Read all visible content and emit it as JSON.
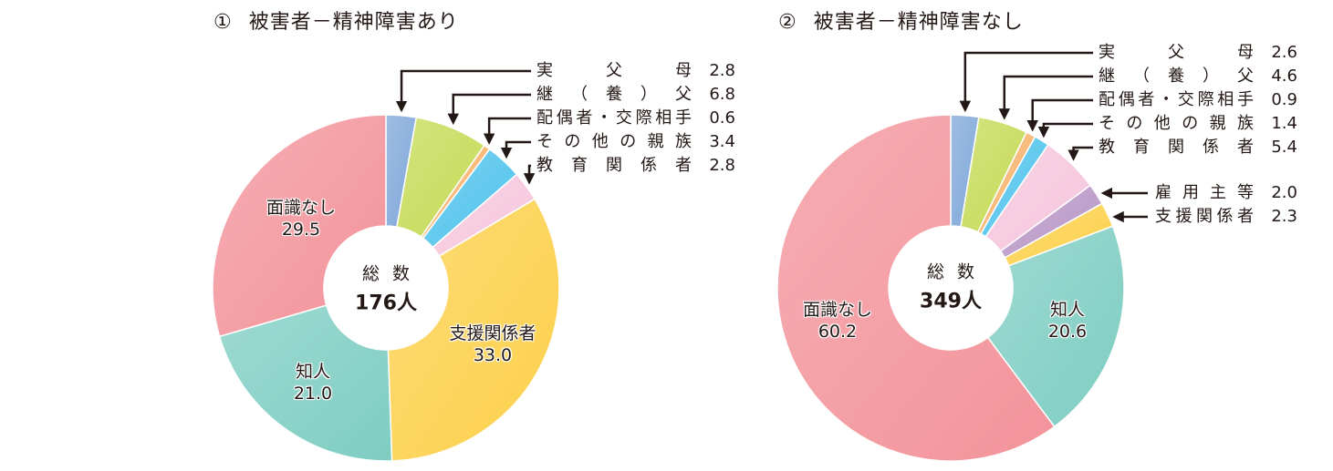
{
  "chart_data": [
    {
      "type": "pie",
      "variant": "donut",
      "title": "① 被害者－精神障害あり",
      "center_label": "総数",
      "total": "176人",
      "unit": "%",
      "categories": [
        "実父母",
        "継（養）父",
        "配偶者・交際相手",
        "その他の親族",
        "教育関係者",
        "支援関係者",
        "知人",
        "面識なし"
      ],
      "values": [
        2.8,
        6.8,
        0.6,
        3.4,
        2.8,
        33.0,
        21.0,
        29.5
      ],
      "colors": [
        "#7fa7d9",
        "#c5da55",
        "#f6b26b",
        "#4fc3ec",
        "#f6c6dc",
        "#fdd04a",
        "#7ecdc2",
        "#f3939a"
      ]
    },
    {
      "type": "pie",
      "variant": "donut",
      "title": "② 被害者－精神障害なし",
      "center_label": "総数",
      "total": "349人",
      "unit": "%",
      "categories": [
        "実父母",
        "継（養）父",
        "配偶者・交際相手",
        "その他の親族",
        "教育関係者",
        "雇用主等",
        "支援関係者",
        "知人",
        "面識なし"
      ],
      "values": [
        2.6,
        4.6,
        0.9,
        1.4,
        5.4,
        2.0,
        2.3,
        20.6,
        60.2
      ],
      "colors": [
        "#7fa7d9",
        "#c5da55",
        "#f6b26b",
        "#4fc3ec",
        "#f6c6dc",
        "#b896c6",
        "#fdd04a",
        "#7ecdc2",
        "#f3939a"
      ]
    }
  ],
  "charts": [
    {
      "num": "①",
      "title": "被害者－精神障害あり",
      "center_top": "総数",
      "center_total": "176人",
      "legend": [
        {
          "label": "実父母",
          "value": "2.8"
        },
        {
          "label": "継（養）父",
          "value": "6.8"
        },
        {
          "label": "配偶者・交際相手",
          "value": "0.6"
        },
        {
          "label": "その他の親族",
          "value": "3.4"
        },
        {
          "label": "教育関係者",
          "value": "2.8"
        }
      ],
      "inner_labels": [
        {
          "label": "面識なし",
          "value": "29.5"
        },
        {
          "label": "知人",
          "value": "21.0"
        },
        {
          "label": "支援関係者",
          "value": "33.0"
        }
      ]
    },
    {
      "num": "②",
      "title": "被害者－精神障害なし",
      "center_top": "総数",
      "center_total": "349人",
      "legend": [
        {
          "label": "実父母",
          "value": "2.6"
        },
        {
          "label": "継（養）父",
          "value": "4.6"
        },
        {
          "label": "配偶者・交際相手",
          "value": "0.9"
        },
        {
          "label": "その他の親族",
          "value": "1.4"
        },
        {
          "label": "教育関係者",
          "value": "5.4"
        },
        {
          "label": "雇用主等",
          "value": "2.0"
        },
        {
          "label": "支援関係者",
          "value": "2.3"
        }
      ],
      "inner_labels": [
        {
          "label": "面識なし",
          "value": "60.2"
        },
        {
          "label": "知人",
          "value": "20.6"
        }
      ]
    }
  ]
}
